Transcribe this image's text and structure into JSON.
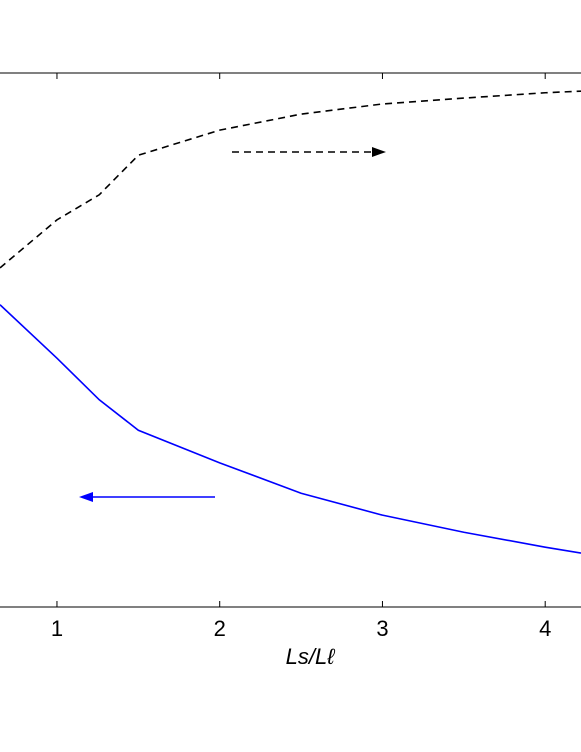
{
  "chart_data": {
    "type": "line",
    "x_label": "Ls/Lℓ",
    "x": [
      0.65,
      1,
      1.26,
      1.5,
      2,
      2.5,
      3,
      3.5,
      4,
      4.22
    ],
    "series": [
      {
        "color": "#0000ff",
        "dash": false,
        "values": [
          0.566,
          0.466,
          0.388,
          0.331,
          0.27,
          0.213,
          0.172,
          0.14,
          0.112,
          0.101
        ]
      },
      {
        "color": "#000000",
        "dash": true,
        "values": [
          0.635,
          0.725,
          0.772,
          0.846,
          0.893,
          0.923,
          0.942,
          0.953,
          0.963,
          0.966
        ]
      }
    ],
    "xlim": [
      0.65,
      4.22
    ],
    "ylim": [
      0,
      1
    ],
    "xticks": [
      1,
      2,
      3,
      4
    ]
  }
}
